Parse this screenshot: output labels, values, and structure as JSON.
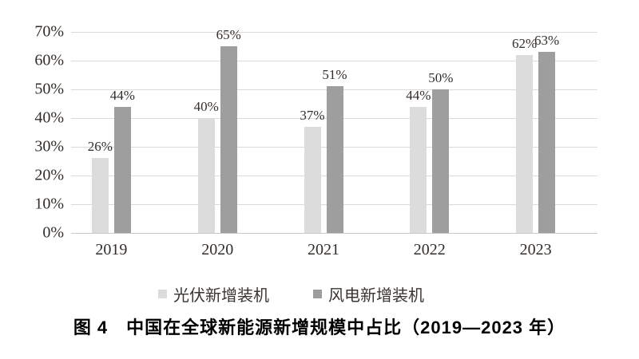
{
  "figure": {
    "caption": "图 4　中国在全球新能源新增规模中占比（2019—2023 年）"
  },
  "colors": {
    "series_solar": "#dcdcdc",
    "series_wind": "#9e9e9e",
    "gridline": "#dadada",
    "axis_line": "#c9c9c9",
    "label_text": "#332e2a",
    "title_text": "#000000",
    "background": "#ffffff"
  },
  "chart_data": {
    "type": "bar",
    "title": "图 4　中国在全球新能源新增规模中占比（2019—2023 年）",
    "categories": [
      "2019",
      "2020",
      "2021",
      "2022",
      "2023"
    ],
    "series": [
      {
        "name": "光伏新增装机",
        "color": "#dcdcdc",
        "values": [
          26,
          40,
          37,
          44,
          62
        ]
      },
      {
        "name": "风电新增装机",
        "color": "#9e9e9e",
        "values": [
          44,
          65,
          51,
          50,
          63
        ]
      }
    ],
    "data_labels": [
      "26%",
      "44%",
      "40%",
      "65%",
      "37%",
      "51%",
      "44%",
      "50%",
      "62%",
      "63%"
    ],
    "value_suffix": "%",
    "xlabel": "",
    "ylabel": "",
    "ylim": [
      0,
      70
    ],
    "ytick_step": 10,
    "ytick_labels": [
      "0%",
      "10%",
      "20%",
      "30%",
      "40%",
      "50%",
      "60%",
      "70%"
    ],
    "grid": true,
    "legend_position": "bottom",
    "legend_entries": [
      "光伏新增装机",
      "风电新增装机"
    ]
  }
}
